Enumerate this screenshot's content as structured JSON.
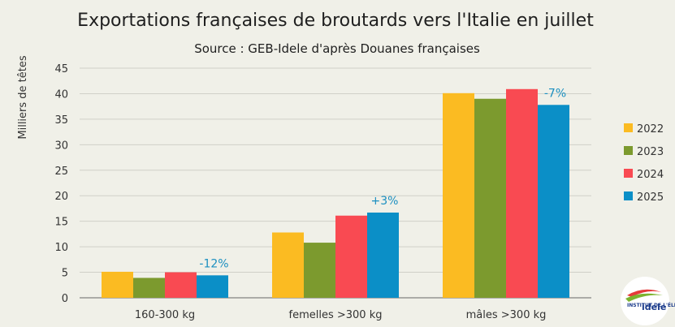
{
  "chart_data": {
    "type": "bar",
    "title": "Exportations françaises de broutards vers l'Italie en juillet",
    "subtitle": "Source : GEB-Idele d'après Douanes françaises",
    "ylabel": "Milliers de têtes",
    "xlabel": "",
    "ylim": [
      0,
      45
    ],
    "yticks": [
      0,
      5,
      10,
      15,
      20,
      25,
      30,
      35,
      40,
      45
    ],
    "grid": true,
    "legend_position": "right",
    "categories": [
      "160-300 kg",
      "femelles >300 kg",
      "mâles >300 kg"
    ],
    "series": [
      {
        "name": "2022",
        "color": "#fbbb22",
        "values": [
          5.1,
          12.8,
          40.1
        ]
      },
      {
        "name": "2023",
        "color": "#7c9a2e",
        "values": [
          3.9,
          10.8,
          39.0
        ]
      },
      {
        "name": "2024",
        "color": "#f94a52",
        "values": [
          5.0,
          16.1,
          40.9
        ]
      },
      {
        "name": "2025",
        "color": "#0b8fc7",
        "values": [
          4.4,
          16.7,
          37.8
        ]
      }
    ],
    "annotations": [
      {
        "category": "160-300 kg",
        "series": "2025",
        "text": "-12%"
      },
      {
        "category": "femelles >300 kg",
        "series": "2025",
        "text": "+3%"
      },
      {
        "category": "mâles >300 kg",
        "series": "2025",
        "text": "-7%"
      }
    ]
  },
  "logo": {
    "name": "idele-logo-icon",
    "text_top": "INSTITUT DE L'ÉLEVAGE",
    "text_brand": "idele"
  }
}
